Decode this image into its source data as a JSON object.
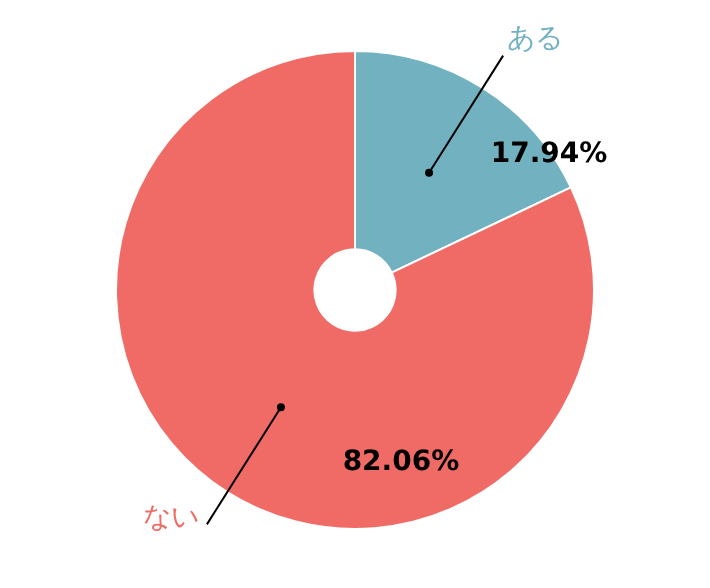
{
  "chart_data": {
    "type": "donut",
    "categories": [
      "ある",
      "ない"
    ],
    "values": [
      17.94,
      82.06
    ],
    "colors": [
      "#72b1c0",
      "#f06b65"
    ],
    "value_labels": [
      "17.94%",
      "82.06%"
    ],
    "legend": false
  }
}
